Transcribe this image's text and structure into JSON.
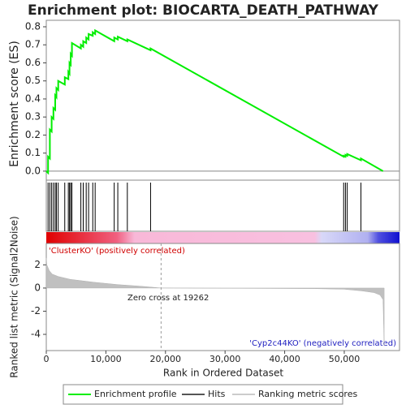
{
  "chart_data": [
    {
      "type": "line",
      "title": "Enrichment plot: BIOCARTA_DEATH_PATHWAY",
      "y_label": "Enrichment score (ES)",
      "xlim": [
        0,
        59270
      ],
      "ylim": [
        -0.05,
        0.836
      ],
      "yticks": [
        {
          "value": 0,
          "label": "0.0"
        },
        0.1,
        0.2,
        0.3,
        0.4,
        0.5,
        0.6,
        0.7,
        0.8
      ],
      "series": [
        {
          "name": "Enrichment profile",
          "color": "#00ee00",
          "x": [
            0,
            300,
            300,
            600,
            600,
            900,
            900,
            1200,
            1200,
            1500,
            1500,
            1700,
            1700,
            2000,
            2000,
            3100,
            3100,
            3700,
            3700,
            3900,
            3900,
            4100,
            4100,
            4300,
            4300,
            5800,
            5800,
            6200,
            6200,
            6700,
            6700,
            7100,
            7100,
            7800,
            7800,
            8200,
            8200,
            11400,
            11400,
            12000,
            12000,
            13600,
            13600,
            17500,
            17500,
            49900,
            49900,
            50200,
            50200,
            50500,
            50500,
            52800,
            52800,
            56500
          ],
          "values": [
            0,
            -0.01,
            0.08,
            0.07,
            0.23,
            0.22,
            0.3,
            0.29,
            0.35,
            0.34,
            0.42,
            0.41,
            0.46,
            0.45,
            0.5,
            0.48,
            0.52,
            0.51,
            0.55,
            0.54,
            0.6,
            0.59,
            0.65,
            0.64,
            0.71,
            0.68,
            0.7,
            0.69,
            0.72,
            0.71,
            0.74,
            0.73,
            0.76,
            0.75,
            0.77,
            0.76,
            0.78,
            0.72,
            0.74,
            0.73,
            0.745,
            0.72,
            0.73,
            0.67,
            0.68,
            0.08,
            0.085,
            0.08,
            0.09,
            0.085,
            0.095,
            0.06,
            0.07,
            0.0
          ]
        }
      ],
      "hits": {
        "name": "Hits",
        "color": "#000000",
        "x": [
          300,
          600,
          900,
          1200,
          1500,
          1700,
          2000,
          3100,
          3700,
          3900,
          4100,
          4300,
          5800,
          6200,
          6700,
          7100,
          7800,
          8200,
          11400,
          12000,
          13600,
          17500,
          49900,
          50200,
          50500,
          52800
        ]
      }
    },
    {
      "type": "area",
      "x_label": "Rank in Ordered Dataset",
      "y_label": "Ranked list metric (Signal2Noise)",
      "xlim": [
        0,
        59270
      ],
      "ylim": [
        -5.4,
        3.85
      ],
      "yticks": [
        -4,
        -2,
        0,
        2
      ],
      "xticks": [
        0,
        {
          "value": 10000,
          "label": "10,000"
        },
        {
          "value": 20000,
          "label": "20,000"
        },
        {
          "value": 30000,
          "label": "30,000"
        },
        {
          "value": 40000,
          "label": "40,000"
        },
        {
          "value": 50000,
          "label": "50,000"
        }
      ],
      "series": [
        {
          "name": "Ranking metric scores",
          "color": "#c0c0c0",
          "x": [
            0,
            100,
            500,
            1000,
            2000,
            4000,
            8000,
            12000,
            16000,
            19262,
            45000,
            50000,
            53000,
            55000,
            56000,
            56500,
            56700
          ],
          "values": [
            2.6,
            2.0,
            1.5,
            1.2,
            1.0,
            0.75,
            0.5,
            0.3,
            0.15,
            0,
            -0.05,
            -0.1,
            -0.25,
            -0.4,
            -0.6,
            -1.0,
            -5.0
          ]
        }
      ],
      "zero_cross": 19262,
      "zero_cross_label": "Zero cross at 19262",
      "positive_label": "'ClusterKO' (positively correlated)",
      "negative_label": "'Cyp2c44KO' (negatively correlated)"
    }
  ]
}
